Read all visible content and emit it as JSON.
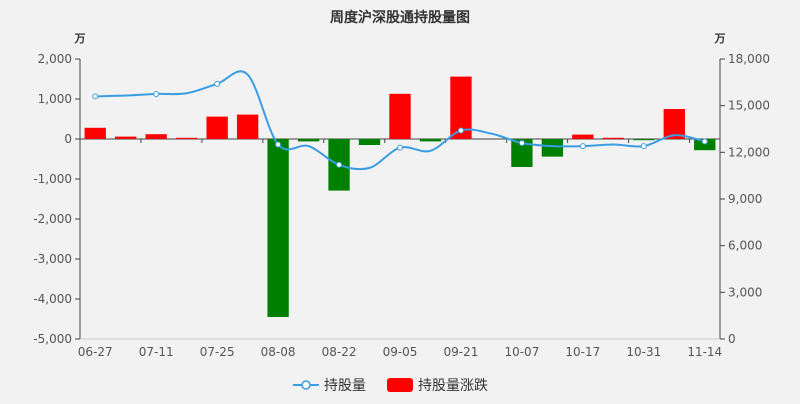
{
  "chart_data": {
    "type": "bar",
    "title": "周度沪深股通持股量图",
    "left_unit": "万",
    "right_unit": "万",
    "left_ylim": [
      -5000,
      2000
    ],
    "left_ticks": [
      "2,000",
      "1,000",
      "0",
      "-1,000",
      "-2,000",
      "-3,000",
      "-4,000",
      "-5,000"
    ],
    "left_tick_values": [
      2000,
      1000,
      0,
      -1000,
      -2000,
      -3000,
      -4000,
      -5000
    ],
    "right_ylim": [
      0,
      18000
    ],
    "right_ticks": [
      "18,000",
      "15,000",
      "12,000",
      "9,000",
      "6,000",
      "3,000",
      "0"
    ],
    "right_tick_values": [
      18000,
      15000,
      12000,
      9000,
      6000,
      3000,
      0
    ],
    "x_tick_labels": [
      "06-27",
      "07-11",
      "07-25",
      "08-08",
      "08-22",
      "09-05",
      "09-21",
      "10-07",
      "10-17",
      "10-31",
      "11-14"
    ],
    "x_tick_positions": [
      0,
      2,
      4,
      6,
      8,
      10,
      12,
      14,
      16,
      18,
      20
    ],
    "num_points": 21,
    "series": [
      {
        "name": "持股量",
        "kind": "line",
        "axis": "right",
        "color": "#3a9de4",
        "values": [
          15600,
          15650,
          15750,
          15800,
          16400,
          17000,
          12500,
          12400,
          11200,
          11000,
          12300,
          12100,
          13400,
          13200,
          12600,
          12400,
          12400,
          12500,
          12400,
          13100,
          12700
        ]
      },
      {
        "name": "持股量涨跌",
        "kind": "bar",
        "axis": "left",
        "pos_color": "#ff0000",
        "neg_color": "#008000",
        "values": [
          280,
          60,
          120,
          30,
          560,
          610,
          -4450,
          -60,
          -1290,
          -150,
          1130,
          -60,
          1560,
          0,
          -700,
          -440,
          110,
          30,
          -30,
          750,
          -280
        ]
      }
    ],
    "legend": [
      "持股量",
      "持股量涨跌"
    ],
    "legend_position": "bottom"
  }
}
